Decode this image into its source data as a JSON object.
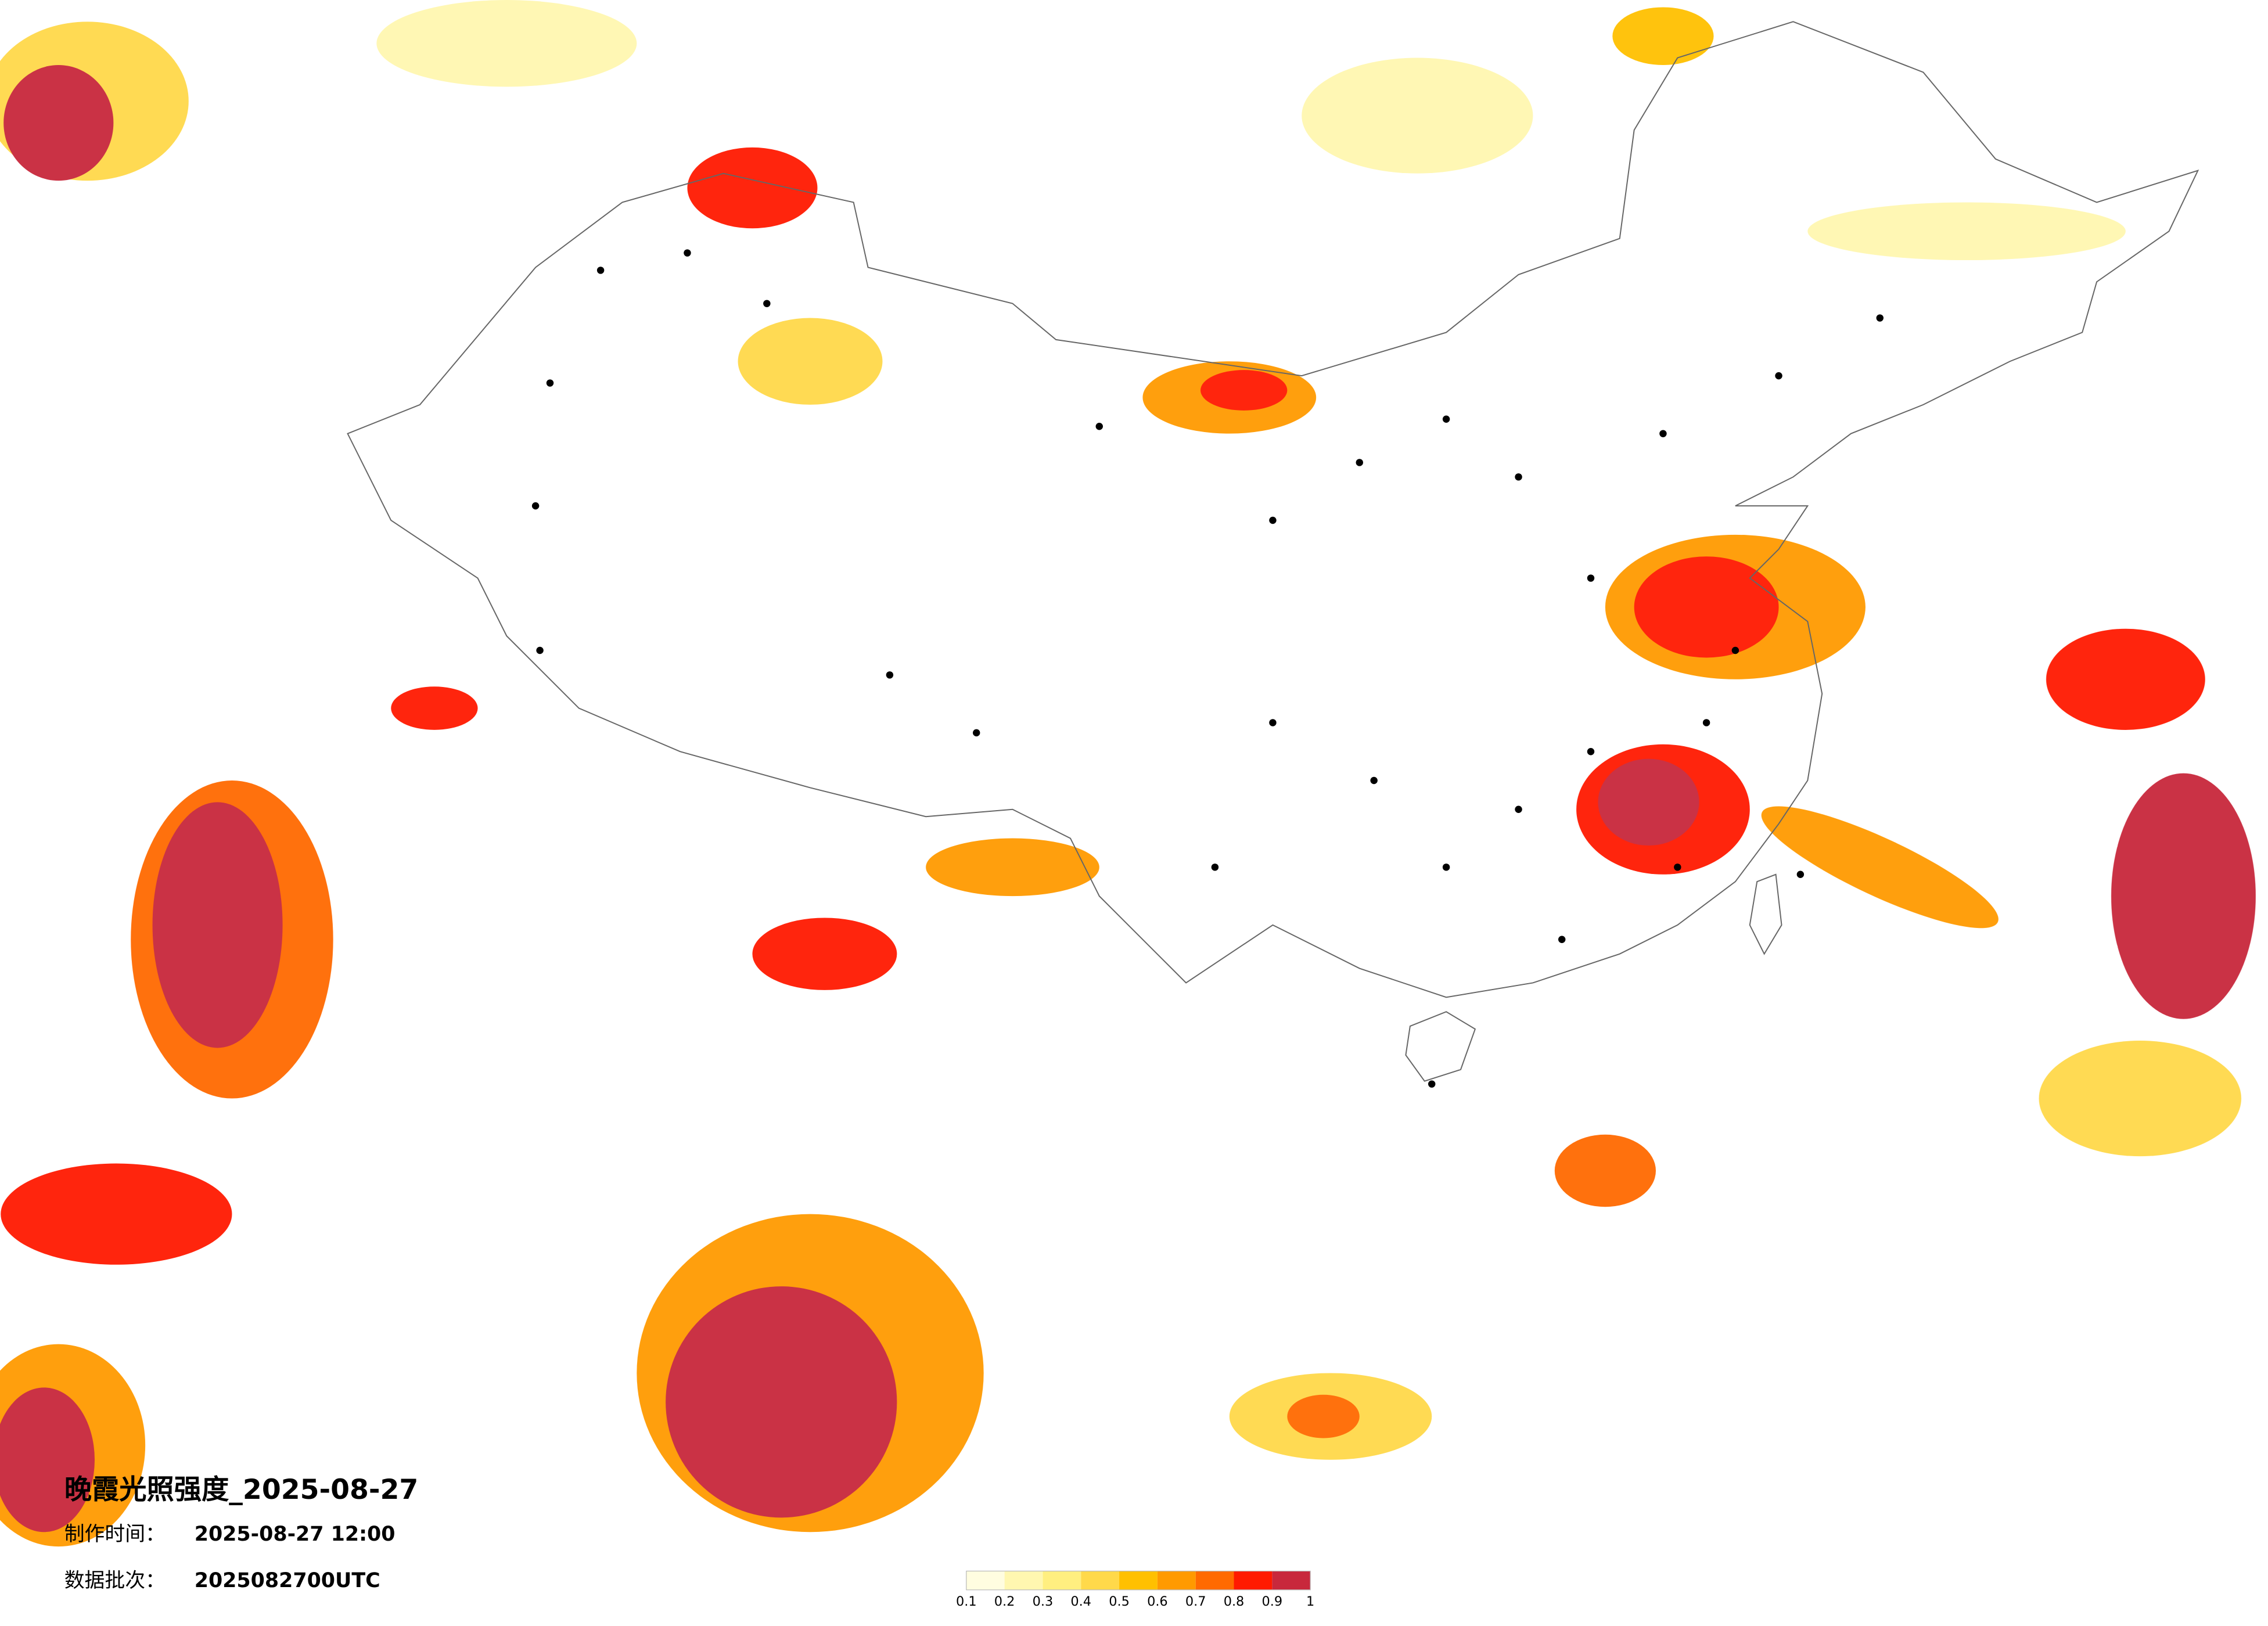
{
  "map": {
    "title": "晚霞光照强度_2025-08-27",
    "made_label": "制作时间：",
    "made_time": "2025-08-27 12:00",
    "batch_label": "数据批次：",
    "batch": "2025082700UTC",
    "legend": {
      "ticks": [
        0.1,
        0.2,
        0.3,
        0.4,
        0.5,
        0.6,
        0.7,
        0.8,
        0.9,
        1
      ],
      "colors": [
        "#fffde0",
        "#fff7b0",
        "#ffef80",
        "#ffd94a",
        "#ffc000",
        "#ff9a00",
        "#ff6a00",
        "#ff1a00",
        "#c8283c"
      ]
    }
  }
}
